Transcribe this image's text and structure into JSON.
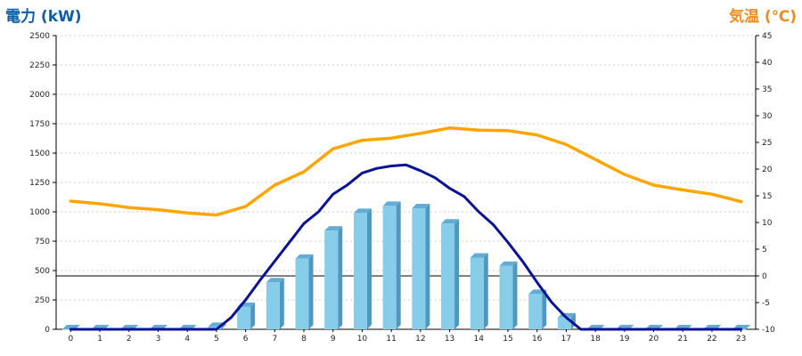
{
  "titles": {
    "left": "電力 (kW)",
    "right": "気温 (℃)"
  },
  "colors": {
    "left_title": "#0b5fa8",
    "right_title": "#f08c1a",
    "bar_front": "#87cde9",
    "bar_side": "#4c98c2",
    "bar_top": "#62acd6",
    "power_line": "#0a1296",
    "temp_line": "#ffa500",
    "grid": "#cccccc",
    "axis": "#000000"
  },
  "chart_data": {
    "type": "bar",
    "categories": [
      "0",
      "1",
      "2",
      "3",
      "4",
      "5",
      "6",
      "7",
      "8",
      "9",
      "10",
      "11",
      "12",
      "13",
      "14",
      "15",
      "16",
      "17",
      "18",
      "19",
      "20",
      "21",
      "22",
      "23"
    ],
    "left_axis": {
      "ylim": [
        0,
        2500
      ],
      "ticks": [
        "0",
        "250",
        "500",
        "750",
        "1000",
        "1250",
        "1500",
        "1750",
        "2000",
        "2250",
        "2500"
      ]
    },
    "right_axis": {
      "ylim": [
        -10,
        45
      ],
      "ticks": [
        "-10",
        "-5",
        "0",
        "5",
        "10",
        "15",
        "20",
        "25",
        "30",
        "35",
        "40",
        "45"
      ],
      "zero_line": 0
    },
    "grid": true,
    "series": [
      {
        "type": "bar",
        "axis": "left",
        "values": [
          0,
          0,
          0,
          0,
          0,
          20,
          190,
          400,
          600,
          840,
          990,
          1050,
          1030,
          900,
          610,
          540,
          300,
          100,
          0,
          0,
          0,
          0,
          0,
          0
        ]
      },
      {
        "type": "line",
        "axis": "left",
        "x": [
          0,
          1,
          2,
          3,
          4,
          5,
          5.5,
          6,
          6.5,
          7,
          7.5,
          8,
          8.5,
          9,
          9.5,
          10,
          10.5,
          11,
          11.5,
          12,
          12.5,
          13,
          13.5,
          14,
          14.5,
          15,
          15.5,
          16,
          16.5,
          17,
          17.5,
          18,
          19,
          20,
          21,
          22,
          23
        ],
        "values": [
          0,
          0,
          0,
          0,
          0,
          0,
          100,
          250,
          420,
          580,
          740,
          900,
          1000,
          1150,
          1230,
          1330,
          1370,
          1390,
          1400,
          1350,
          1290,
          1200,
          1130,
          1000,
          890,
          740,
          580,
          400,
          230,
          100,
          0,
          0,
          0,
          0,
          0,
          0,
          0
        ]
      },
      {
        "type": "line",
        "axis": "right",
        "x": [
          0,
          1,
          2,
          3,
          4,
          5,
          6,
          7,
          8,
          9,
          10,
          11,
          12,
          13,
          14,
          15,
          16,
          17,
          18,
          19,
          20,
          21,
          22,
          23
        ],
        "values": [
          14,
          13.5,
          12.8,
          12.4,
          11.8,
          11.4,
          13,
          17,
          19.5,
          23.8,
          25.4,
          25.8,
          26.7,
          27.7,
          27.3,
          27.2,
          26.4,
          24.6,
          21.8,
          19,
          17,
          16.1,
          15.3,
          13.9
        ]
      }
    ]
  }
}
